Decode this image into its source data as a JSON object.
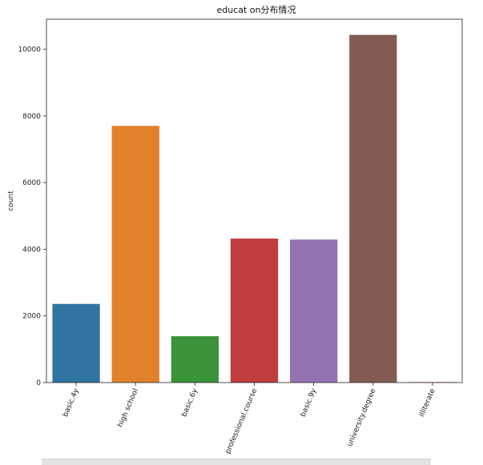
{
  "chart_data": {
    "type": "bar",
    "title": "educat on分布情况",
    "xlabel": "",
    "ylabel": "count",
    "categories": [
      "basic.4y",
      "high school",
      "basic.6y",
      "professional.course",
      "basic.9y",
      "university.degree",
      "illiterate"
    ],
    "values": [
      2360,
      7700,
      1390,
      4320,
      4290,
      10430,
      18
    ],
    "colors": [
      "#3274a1",
      "#e1812c",
      "#3a923a",
      "#c03d3e",
      "#9372b2",
      "#845b53",
      "#d684bd"
    ],
    "ylim": [
      0,
      10900
    ],
    "yticks": [
      0,
      2000,
      4000,
      6000,
      8000,
      10000
    ],
    "grid": false,
    "legend": "none"
  }
}
